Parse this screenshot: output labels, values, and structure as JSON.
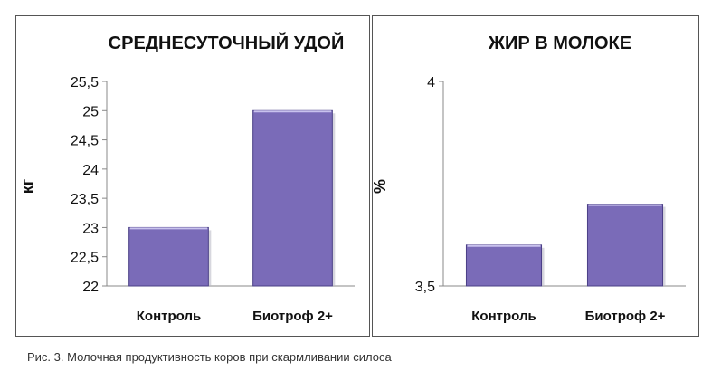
{
  "chart_data": [
    {
      "type": "bar",
      "title": "СРЕДНЕСУТОЧНЫЙ УДОЙ",
      "ylabel": "кг",
      "categories": [
        "Контроль",
        "Биотроф 2+"
      ],
      "values": [
        23,
        25
      ],
      "ylim": [
        22,
        25.5
      ],
      "yticks": [
        "22",
        "22,5",
        "23",
        "23,5",
        "24",
        "24,5",
        "25",
        "25,5"
      ],
      "ytick_values": [
        22,
        22.5,
        23,
        23.5,
        24,
        24.5,
        25,
        25.5
      ],
      "grid": false,
      "bar_color": "#7a6bb8"
    },
    {
      "type": "bar",
      "title": "ЖИР В МОЛОКЕ",
      "ylabel": "%",
      "categories": [
        "Контроль",
        "Биотроф 2+"
      ],
      "values": [
        3.6,
        3.7
      ],
      "ylim": [
        3.5,
        4
      ],
      "yticks": [
        "3,5",
        "4"
      ],
      "ytick_values": [
        3.5,
        4
      ],
      "grid": false,
      "bar_color": "#7a6bb8"
    }
  ],
  "caption": "Рис. 3. Молочная продуктивность коров при скармливании силоса"
}
